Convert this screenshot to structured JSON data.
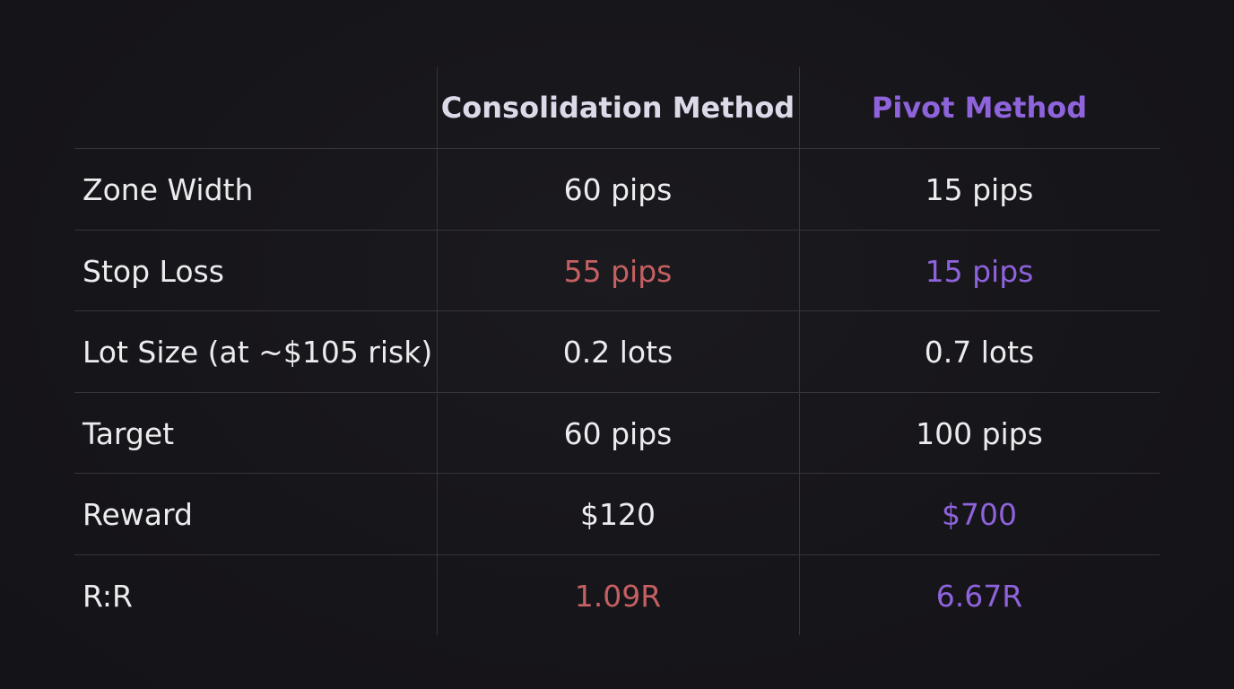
{
  "colors": {
    "background": "#161519",
    "text": "#ecebee",
    "grid": "#36343c",
    "negative": "#c56062",
    "pivot_accent": "#8e63db",
    "header_consolidation": "#dcdae8"
  },
  "table": {
    "headers": [
      "",
      "Consolidation Method",
      "Pivot Method"
    ],
    "rows": [
      {
        "label": "Zone Width",
        "consolidation": "60 pips",
        "pivot": "15 pips",
        "consolidation_color": "#ecebee",
        "pivot_color": "#ecebee"
      },
      {
        "label": "Stop Loss",
        "consolidation": "55 pips",
        "pivot": "15 pips",
        "consolidation_color": "#c56062",
        "pivot_color": "#8e63db"
      },
      {
        "label": "Lot Size (at ~$105 risk)",
        "consolidation": "0.2 lots",
        "pivot": "0.7 lots",
        "consolidation_color": "#ecebee",
        "pivot_color": "#ecebee"
      },
      {
        "label": "Target",
        "consolidation": "60 pips",
        "pivot": "100 pips",
        "consolidation_color": "#ecebee",
        "pivot_color": "#ecebee"
      },
      {
        "label": "Reward",
        "consolidation": "$120",
        "pivot": "$700",
        "consolidation_color": "#ecebee",
        "pivot_color": "#8e63db"
      },
      {
        "label": "R:R",
        "consolidation": "1.09R",
        "pivot": "6.67R",
        "consolidation_color": "#c56062",
        "pivot_color": "#8e63db"
      }
    ]
  }
}
